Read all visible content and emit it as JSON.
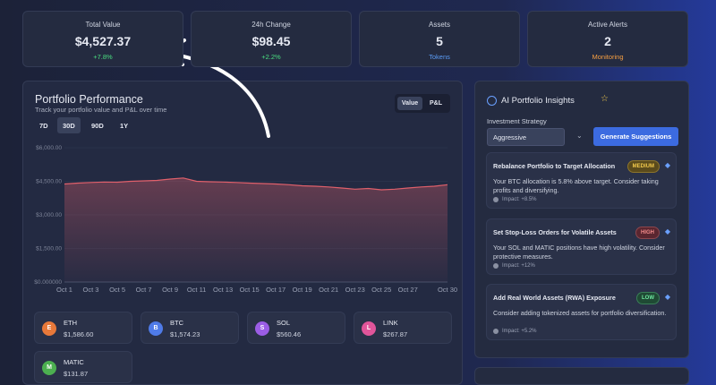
{
  "stats": [
    {
      "label": "Total Value",
      "value": "$4,527.37",
      "sub": "+7.8%"
    },
    {
      "label": "24h Change",
      "value": "$98.45",
      "sub": "+2.2%"
    },
    {
      "label": "Assets",
      "value": "5",
      "sub": "Tokens"
    },
    {
      "label": "Active Alerts",
      "value": "2",
      "sub": "Monitoring"
    }
  ],
  "performance": {
    "title": "Portfolio Performance",
    "subtitle": "Track your portfolio value and P&L over time",
    "toggle": [
      "Value",
      "P&L"
    ],
    "ranges": [
      "7D",
      "30D",
      "90D",
      "1Y"
    ],
    "chart": {
      "type": "area",
      "color": "#e0606b",
      "categories": [
        "Oct 1",
        null,
        "Oct 3",
        null,
        "Oct 5",
        null,
        "Oct 7",
        null,
        "Oct 9",
        null,
        "Oct 11",
        null,
        "Oct 13",
        null,
        "Oct 15",
        null,
        "Oct 17",
        null,
        "Oct 19",
        null,
        "Oct 21",
        null,
        "Oct 23",
        null,
        "Oct 25",
        null,
        "Oct 27",
        null,
        null,
        "Oct 30"
      ],
      "values": [
        4380,
        4420,
        4450,
        4470,
        4460,
        4500,
        4520,
        4540,
        4600,
        4650,
        4500,
        4480,
        4470,
        4450,
        4420,
        4400,
        4380,
        4350,
        4300,
        4280,
        4250,
        4200,
        4150,
        4180,
        4120,
        4150,
        4200,
        4250,
        4280,
        4350
      ],
      "ylim": [
        0,
        6000
      ],
      "yticks": [
        {
          "value": 0,
          "label": "$0.000000"
        },
        {
          "value": 1500,
          "label": "$1,500.00"
        },
        {
          "value": 3000,
          "label": "$3,000.00"
        },
        {
          "value": 4500,
          "label": "$4,500.00"
        },
        {
          "value": 6000,
          "label": "$6,000.00"
        }
      ]
    }
  },
  "assets": [
    {
      "letter": "E",
      "symbol": "ETH",
      "price": "$1,586.60"
    },
    {
      "letter": "B",
      "symbol": "BTC",
      "price": "$1,574.23"
    },
    {
      "letter": "S",
      "symbol": "SOL",
      "price": "$560.46"
    },
    {
      "letter": "L",
      "symbol": "LINK",
      "price": "$267.87"
    },
    {
      "letter": "M",
      "symbol": "MATIC",
      "price": "$131.87"
    }
  ],
  "insights": {
    "title": "AI Portfolio Insights",
    "strategy_label": "Investment Strategy",
    "strategy": "Aggressive",
    "button": "Generate Suggestions",
    "items": [
      {
        "title": "Rebalance Portfolio to Target Allocation",
        "priority": "MEDIUM",
        "text": "Your BTC allocation is 5.8% above target. Consider taking profits and diversifying.",
        "impact": "Impact: +8.5%"
      },
      {
        "title": "Set Stop-Loss Orders for Volatile Assets",
        "priority": "HIGH",
        "text": "Your SOL and MATIC positions have high volatility. Consider protective measures.",
        "impact": "Impact: +12%"
      },
      {
        "title": "Add Real World Assets (RWA) Exposure",
        "priority": "LOW",
        "text": "Consider adding tokenized assets for portfolio diversification.",
        "impact": "Impact: +5.2%"
      }
    ]
  }
}
